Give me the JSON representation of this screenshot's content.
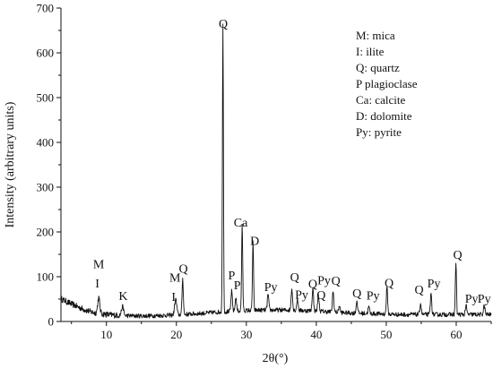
{
  "chart_data": {
    "type": "line",
    "title": "",
    "xlabel": "2θ(°)",
    "ylabel": "Intensity (arbitrary units)",
    "xlim": [
      3.5,
      65
    ],
    "ylim": [
      0,
      700
    ],
    "x_ticks": [
      10,
      20,
      30,
      40,
      50,
      60
    ],
    "y_ticks": [
      0,
      100,
      200,
      300,
      400,
      500,
      600,
      700
    ],
    "grid": false,
    "legend_position": "top-right",
    "legend": [
      "M: mica",
      "I: ilite",
      "Q: quartz",
      "P plagioclase",
      "Ca: calcite",
      "D: dolomite",
      "Py: pyrite"
    ],
    "baseline_points": [
      [
        3.5,
        50
      ],
      [
        4.5,
        42
      ],
      [
        5.5,
        35
      ],
      [
        6.5,
        28
      ],
      [
        7.5,
        22
      ],
      [
        8.5,
        18
      ],
      [
        9.5,
        16
      ],
      [
        10.5,
        14
      ],
      [
        12,
        13
      ],
      [
        14,
        12
      ],
      [
        16,
        12
      ],
      [
        18,
        13
      ],
      [
        20,
        14
      ],
      [
        22,
        16
      ],
      [
        24,
        18
      ],
      [
        25.5,
        20
      ],
      [
        28,
        22
      ],
      [
        30,
        24
      ],
      [
        32,
        25
      ],
      [
        34,
        25
      ],
      [
        36,
        25
      ],
      [
        38,
        24
      ],
      [
        40,
        23
      ],
      [
        42,
        21
      ],
      [
        44,
        19
      ],
      [
        46,
        18
      ],
      [
        48,
        17
      ],
      [
        50,
        16
      ],
      [
        52,
        15
      ],
      [
        54,
        15
      ],
      [
        56,
        15
      ],
      [
        58,
        15
      ],
      [
        60,
        15
      ],
      [
        62,
        15
      ],
      [
        65,
        15
      ]
    ],
    "peaks": [
      {
        "x": 8.9,
        "y": 35,
        "w": 0.15
      },
      {
        "x": 12.3,
        "y": 20,
        "w": 0.15
      },
      {
        "x": 19.9,
        "y": 35,
        "w": 0.15
      },
      {
        "x": 20.9,
        "y": 80,
        "w": 0.09
      },
      {
        "x": 26.65,
        "y": 640,
        "w": 0.07
      },
      {
        "x": 27.9,
        "y": 45,
        "w": 0.1
      },
      {
        "x": 28.5,
        "y": 30,
        "w": 0.1
      },
      {
        "x": 29.4,
        "y": 195,
        "w": 0.08
      },
      {
        "x": 30.95,
        "y": 155,
        "w": 0.08
      },
      {
        "x": 33.1,
        "y": 35,
        "w": 0.1
      },
      {
        "x": 36.5,
        "y": 50,
        "w": 0.1
      },
      {
        "x": 37.3,
        "y": 25,
        "w": 0.1
      },
      {
        "x": 39.5,
        "y": 50,
        "w": 0.1
      },
      {
        "x": 40.3,
        "y": 35,
        "w": 0.1
      },
      {
        "x": 42.4,
        "y": 45,
        "w": 0.1
      },
      {
        "x": 43.3,
        "y": 15,
        "w": 0.1
      },
      {
        "x": 45.8,
        "y": 28,
        "w": 0.1
      },
      {
        "x": 47.5,
        "y": 15,
        "w": 0.1
      },
      {
        "x": 50.1,
        "y": 60,
        "w": 0.09
      },
      {
        "x": 54.9,
        "y": 25,
        "w": 0.1
      },
      {
        "x": 56.4,
        "y": 45,
        "w": 0.1
      },
      {
        "x": 59.95,
        "y": 115,
        "w": 0.08
      },
      {
        "x": 61.4,
        "y": 20,
        "w": 0.1
      },
      {
        "x": 64.0,
        "y": 20,
        "w": 0.1
      }
    ],
    "annotations": [
      {
        "text": "Q",
        "x": 26.7,
        "y": 656
      },
      {
        "text": "Ca",
        "x": 29.2,
        "y": 212
      },
      {
        "text": "D",
        "x": 31.2,
        "y": 171
      },
      {
        "text": "M",
        "x": 8.9,
        "y": 119
      },
      {
        "text": "I",
        "x": 8.7,
        "y": 76
      },
      {
        "text": "K",
        "x": 12.4,
        "y": 48
      },
      {
        "text": "M",
        "x": 19.8,
        "y": 89
      },
      {
        "text": "Q",
        "x": 21.0,
        "y": 109
      },
      {
        "text": "I",
        "x": 19.6,
        "y": 46
      },
      {
        "text": "P",
        "x": 27.9,
        "y": 94
      },
      {
        "text": "P",
        "x": 28.7,
        "y": 72
      },
      {
        "text": "Py",
        "x": 33.5,
        "y": 68
      },
      {
        "text": "Q",
        "x": 36.9,
        "y": 90
      },
      {
        "text": "Py",
        "x": 37.9,
        "y": 51
      },
      {
        "text": "Q",
        "x": 39.5,
        "y": 75
      },
      {
        "text": "Py",
        "x": 41.1,
        "y": 83
      },
      {
        "text": "Q",
        "x": 42.8,
        "y": 82
      },
      {
        "text": "Q",
        "x": 40.7,
        "y": 50
      },
      {
        "text": "Q",
        "x": 45.8,
        "y": 54
      },
      {
        "text": "Py",
        "x": 48.1,
        "y": 49
      },
      {
        "text": "Q",
        "x": 50.4,
        "y": 77
      },
      {
        "text": "Q",
        "x": 54.7,
        "y": 62
      },
      {
        "text": "Py",
        "x": 56.8,
        "y": 76
      },
      {
        "text": "Q",
        "x": 60.2,
        "y": 140
      },
      {
        "text": "Py",
        "x": 62.2,
        "y": 42
      },
      {
        "text": "Py",
        "x": 64.0,
        "y": 42
      }
    ]
  }
}
